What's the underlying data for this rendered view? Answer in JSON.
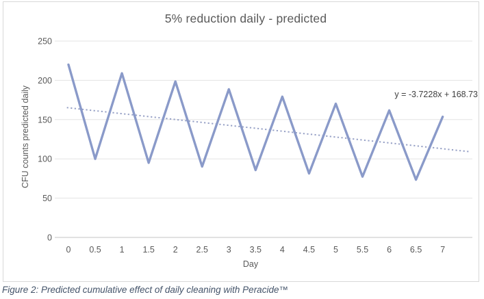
{
  "figure": {
    "caption": "Figure 2: Predicted cumulative effect of daily cleaning with Peracide™"
  },
  "chart_data": {
    "type": "line",
    "title": "5% reduction daily - predicted",
    "xlabel": "Day",
    "ylabel": "CFU counts predicted daily",
    "x": [
      0,
      0.5,
      1,
      1.5,
      2,
      2.5,
      3,
      3.5,
      4,
      4.5,
      5,
      5.5,
      6,
      6.5,
      7
    ],
    "series": [
      {
        "name": "CFU counts predicted daily",
        "values": [
          220,
          100,
          209,
          95,
          198.55,
          90.25,
          188.62,
          85.74,
          179.19,
          81.45,
          170.23,
          77.38,
          161.72,
          73.51,
          153.63
        ]
      }
    ],
    "xticks": [
      "0",
      "0.5",
      "1",
      "1.5",
      "2",
      "2.5",
      "3",
      "3.5",
      "4",
      "4.5",
      "5",
      "5.5",
      "6",
      "6.5",
      "7"
    ],
    "yticks": [
      0,
      50,
      100,
      150,
      200,
      250
    ],
    "ylim": [
      0,
      250
    ],
    "xlim_days": [
      0,
      7.5
    ],
    "grid": true,
    "legend": "none",
    "trendline": {
      "label": "y = -3.7228x + 168.73",
      "slope": -3.7228,
      "intercept": 168.73,
      "x_unit": "half-day period index (1..15)",
      "style": "dotted",
      "draw_from_day": -0.03,
      "draw_to_day": 7.5
    },
    "colors": {
      "series_line": "#8a9ac9",
      "trendline": "#97a1c6",
      "gridline": "#e3e3e3",
      "axis_line": "#c3c3c3",
      "title_text": "#595959",
      "tick_text": "#595959",
      "equation_text": "#404040",
      "caption_text": "#44546a",
      "chart_border": "#d8d8d8"
    }
  }
}
